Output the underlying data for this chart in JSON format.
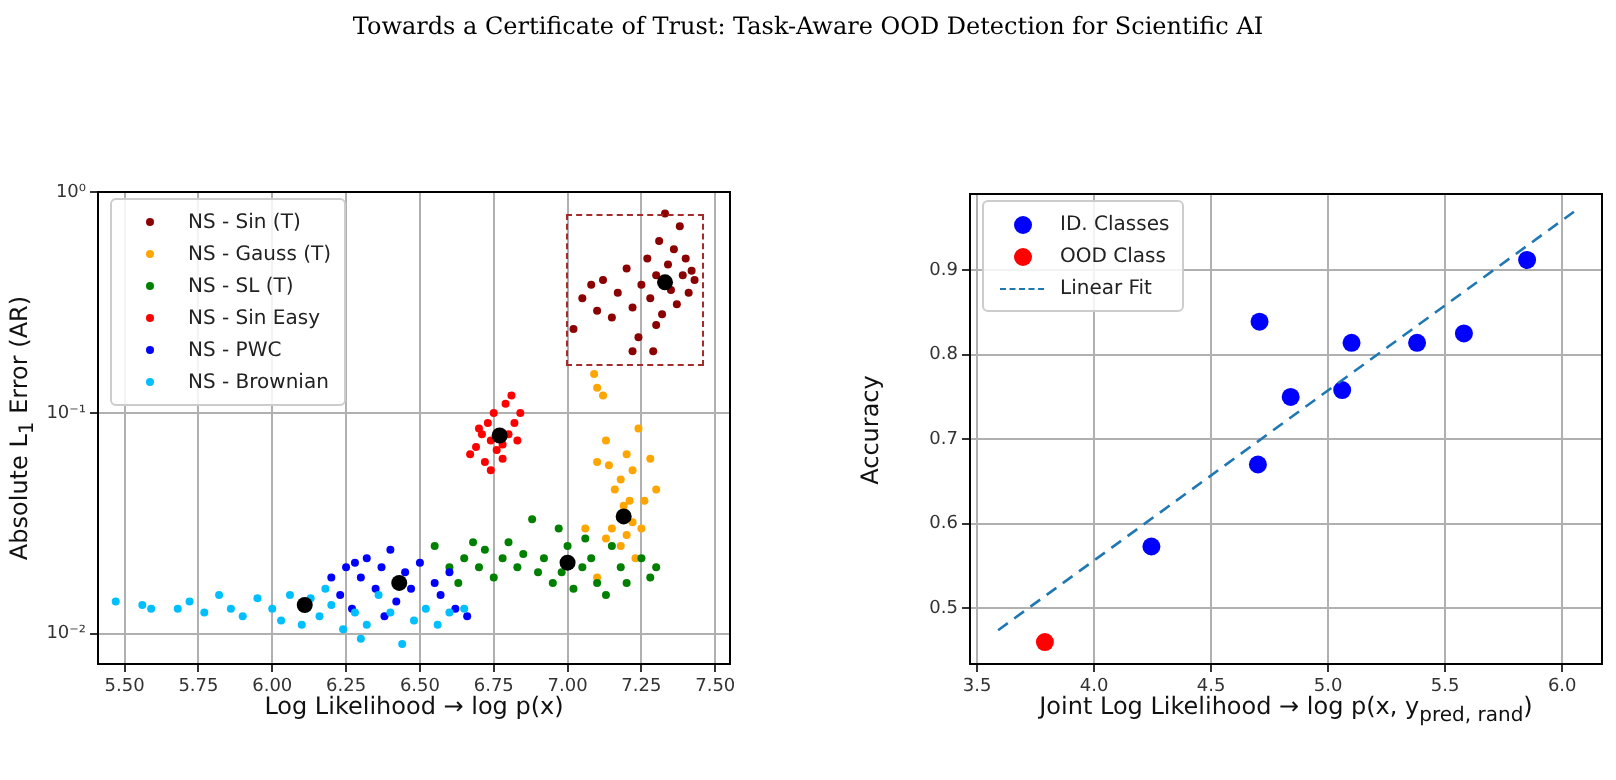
{
  "chart_data": [
    {
      "type": "scatter",
      "title": "Towards a Certificate of Trust: Task-Aware OOD Detection for Scientific AI",
      "xlabel": "Log Likelihood → log p(x)",
      "ylabel": "Absolute L$_{1}$ Error (AR)",
      "log": "y",
      "grid": true,
      "legend": "top left",
      "marker": "circle",
      "xlim": [
        5.41,
        7.55
      ],
      "ylim": [
        0.0073,
        1
      ],
      "xticks": [
        {
          "value": 5.5,
          "label": "5.50"
        },
        {
          "value": 5.75,
          "label": "5.75"
        },
        {
          "value": 6,
          "label": "6.00"
        },
        {
          "value": 6.25,
          "label": "6.25"
        },
        {
          "value": 6.5,
          "label": "6.50"
        },
        {
          "value": 6.75,
          "label": "6.75"
        },
        {
          "value": 7,
          "label": "7.00"
        },
        {
          "value": 7.25,
          "label": "7.25"
        },
        {
          "value": 7.5,
          "label": "7.50"
        }
      ],
      "yticks": [
        {
          "value": 0.01,
          "label": "10⁻²"
        },
        {
          "value": 0.1,
          "label": "10⁻¹"
        },
        {
          "value": 1,
          "label": "10⁰"
        }
      ],
      "series": [
        {
          "name": "NS - Sin (T)",
          "color": "#8b0000",
          "x": [
            7.02,
            7.05,
            7.08,
            7.1,
            7.12,
            7.15,
            7.17,
            7.2,
            7.22,
            7.24,
            7.25,
            7.27,
            7.28,
            7.3,
            7.31,
            7.32,
            7.34,
            7.35,
            7.36,
            7.37,
            7.38,
            7.39,
            7.4,
            7.41,
            7.42,
            7.33,
            7.29,
            7.22,
            7.43,
            7.3
          ],
          "values": [
            0.24,
            0.33,
            0.38,
            0.29,
            0.4,
            0.27,
            0.35,
            0.45,
            0.3,
            0.22,
            0.38,
            0.5,
            0.33,
            0.42,
            0.6,
            0.28,
            0.47,
            0.36,
            0.55,
            0.31,
            0.7,
            0.42,
            0.5,
            0.35,
            0.44,
            0.8,
            0.19,
            0.19,
            0.4,
            0.25
          ]
        },
        {
          "name": "NS - Gauss (T)",
          "color": "#ffa500",
          "x": [
            7.09,
            7.1,
            7.12,
            7.24,
            7.13,
            7.1,
            7.14,
            7.2,
            7.22,
            7.28,
            7.3,
            7.16,
            7.18,
            7.21,
            7.19,
            7.22,
            7.15,
            7.2,
            7.25,
            7.13,
            7.18,
            7.23,
            7.1,
            7.06,
            7.26
          ],
          "values": [
            0.15,
            0.13,
            0.12,
            0.085,
            0.075,
            0.06,
            0.058,
            0.065,
            0.055,
            0.062,
            0.045,
            0.045,
            0.05,
            0.04,
            0.038,
            0.032,
            0.03,
            0.028,
            0.03,
            0.027,
            0.025,
            0.022,
            0.018,
            0.03,
            0.04
          ]
        },
        {
          "name": "NS - SL (T)",
          "color": "#008000",
          "x": [
            6.55,
            6.6,
            6.63,
            6.65,
            6.68,
            6.7,
            6.72,
            6.75,
            6.78,
            6.8,
            6.83,
            6.85,
            6.88,
            6.9,
            6.92,
            6.95,
            6.97,
            7.0,
            7.02,
            7.05,
            7.08,
            7.1,
            7.13,
            7.15,
            7.18,
            7.2,
            7.25,
            7.28,
            7.3,
            6.98,
            7.06
          ],
          "values": [
            0.025,
            0.02,
            0.017,
            0.022,
            0.026,
            0.02,
            0.024,
            0.018,
            0.022,
            0.026,
            0.02,
            0.023,
            0.033,
            0.019,
            0.022,
            0.017,
            0.03,
            0.025,
            0.016,
            0.02,
            0.022,
            0.017,
            0.015,
            0.025,
            0.02,
            0.017,
            0.022,
            0.018,
            0.02,
            0.019,
            0.027
          ]
        },
        {
          "name": "NS - Sin Easy",
          "color": "#ff0000",
          "x": [
            6.67,
            6.69,
            6.71,
            6.72,
            6.73,
            6.74,
            6.75,
            6.76,
            6.78,
            6.79,
            6.8,
            6.81,
            6.82,
            6.83,
            6.84,
            6.74,
            6.78,
            6.7
          ],
          "values": [
            0.065,
            0.07,
            0.08,
            0.06,
            0.09,
            0.075,
            0.1,
            0.068,
            0.072,
            0.11,
            0.08,
            0.12,
            0.09,
            0.075,
            0.1,
            0.055,
            0.062,
            0.085
          ]
        },
        {
          "name": "NS - PWC",
          "color": "#0000ff",
          "x": [
            6.2,
            6.23,
            6.25,
            6.27,
            6.3,
            6.32,
            6.35,
            6.37,
            6.4,
            6.42,
            6.45,
            6.47,
            6.5,
            6.55,
            6.57,
            6.6,
            6.62,
            6.66,
            6.38,
            6.28
          ],
          "values": [
            0.018,
            0.015,
            0.02,
            0.013,
            0.018,
            0.022,
            0.016,
            0.02,
            0.024,
            0.014,
            0.019,
            0.016,
            0.021,
            0.017,
            0.015,
            0.019,
            0.013,
            0.012,
            0.012,
            0.021
          ]
        },
        {
          "name": "NS - Brownian",
          "color": "#00bfff",
          "x": [
            5.47,
            5.56,
            5.59,
            5.68,
            5.72,
            5.77,
            5.82,
            5.86,
            5.9,
            5.95,
            6.0,
            6.03,
            6.06,
            6.1,
            6.13,
            6.16,
            6.2,
            6.24,
            6.28,
            6.32,
            6.36,
            6.4,
            6.44,
            6.48,
            6.52,
            6.56,
            6.6,
            6.65,
            6.18,
            6.3
          ],
          "values": [
            0.014,
            0.0135,
            0.013,
            0.013,
            0.014,
            0.0125,
            0.015,
            0.013,
            0.012,
            0.0145,
            0.013,
            0.0115,
            0.015,
            0.011,
            0.0145,
            0.012,
            0.0135,
            0.0105,
            0.0125,
            0.011,
            0.015,
            0.0125,
            0.009,
            0.0115,
            0.013,
            0.011,
            0.0125,
            0.013,
            0.016,
            0.0095
          ]
        },
        {
          "color": "#000000",
          "x": [
            7.33,
            7.19,
            7.0,
            6.77,
            6.43,
            6.11
          ],
          "values": [
            0.39,
            0.034,
            0.021,
            0.079,
            0.017,
            0.0135
          ]
        }
      ]
    },
    {
      "type": "scatter",
      "xlabel": "Joint Log Likelihood → log p(x, y$_{pred, rand}$)",
      "ylabel": "Accuracy",
      "grid": true,
      "legend": "top left",
      "marker": "circle",
      "xlim": [
        3.47,
        6.17
      ],
      "ylim": [
        0.434,
        0.99
      ],
      "xticks": [
        3.5,
        {
          "value": 4,
          "label": "4.0"
        },
        4.5,
        {
          "value": 5,
          "label": "5.0"
        },
        5.5,
        {
          "value": 6,
          "label": "6.0"
        }
      ],
      "yticks": [
        0.5,
        0.6,
        0.7,
        0.8,
        0.9
      ],
      "series": [
        {
          "name": "ID. Classes",
          "color": "#0000ff",
          "x": [
            4.245,
            4.707,
            4.7,
            4.84,
            5.06,
            5.1,
            5.38,
            5.58,
            5.85
          ],
          "values": [
            0.573,
            0.839,
            0.67,
            0.75,
            0.758,
            0.814,
            0.814,
            0.825,
            0.912
          ]
        },
        {
          "name": "OOD Class",
          "color": "#ff0000",
          "x": [
            3.79
          ],
          "values": [
            0.46
          ]
        },
        {
          "name": "Linear Fit",
          "type": "line",
          "color": "#1f77b4",
          "line_style": "dashed",
          "marker": "none",
          "x": [
            3.59,
            6.05
          ],
          "values": [
            0.474,
            0.969
          ]
        }
      ]
    }
  ]
}
